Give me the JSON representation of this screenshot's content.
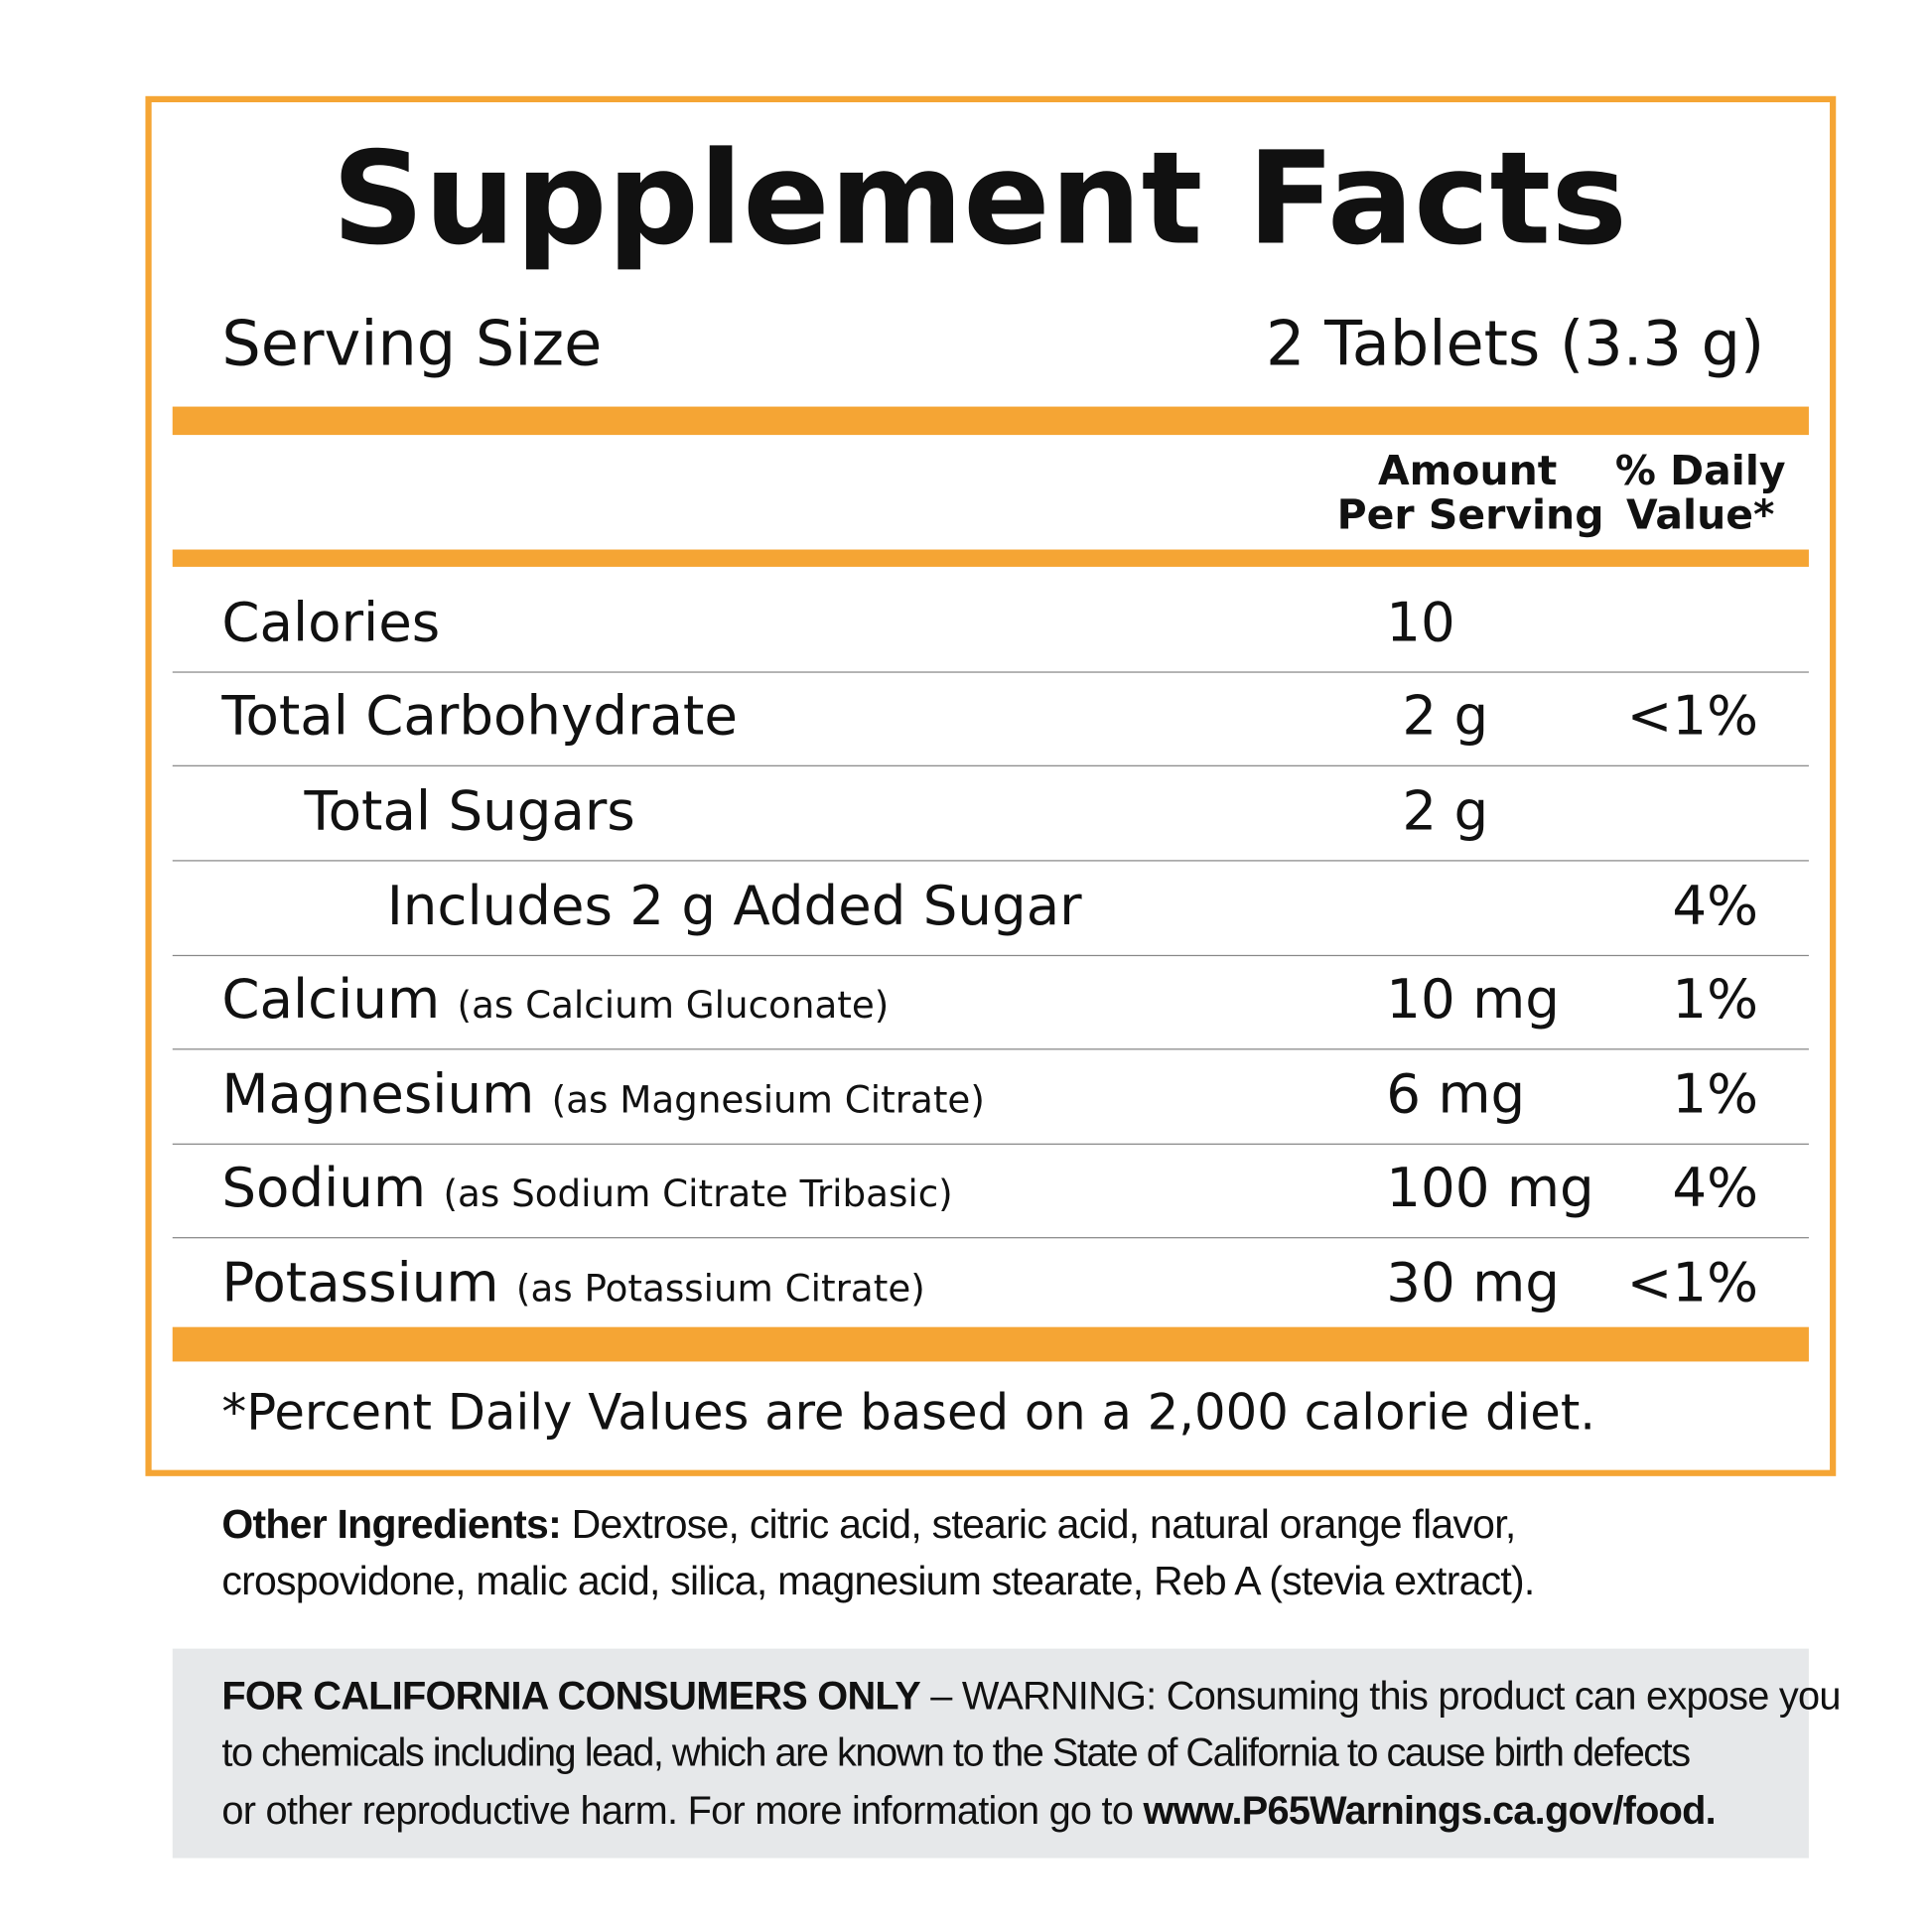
{
  "title": "Supplement Facts",
  "serving_size": {
    "label": "Serving Size",
    "value": "2 Tablets (3.3 g)"
  },
  "columns": {
    "amount": [
      "Amount",
      "Per Serving"
    ],
    "daily_value": [
      "% Daily",
      "Value*"
    ]
  },
  "rows": [
    {
      "name": "Calories",
      "source": "",
      "amount": "10",
      "dv": ""
    },
    {
      "name": "Total Carbohydrate",
      "source": "",
      "amount": "2 g",
      "dv": "<1%"
    },
    {
      "name": "Total Sugars",
      "source": "",
      "amount": "2 g",
      "dv": ""
    },
    {
      "name": "Includes 2 g Added Sugar",
      "source": "",
      "amount": "",
      "dv": "4%"
    },
    {
      "name": "Calcium",
      "source": "(as Calcium Gluconate)",
      "amount": "10 mg",
      "dv": "1%"
    },
    {
      "name": "Magnesium",
      "source": "(as Magnesium Citrate)",
      "amount": "6 mg",
      "dv": "1%"
    },
    {
      "name": "Sodium",
      "source": "(as Sodium Citrate Tribasic)",
      "amount": "100 mg",
      "dv": "4%"
    },
    {
      "name": "Potassium",
      "source": "(as Potassium Citrate)",
      "amount": "30 mg",
      "dv": "<1%"
    }
  ],
  "footnote": "*Percent Daily Values are based on a 2,000 calorie diet.",
  "other_ingredients": {
    "label": "Other Ingredients:",
    "line1": " Dextrose, citric acid, stearic acid, natural orange flavor,",
    "line2": "crospovidone, malic acid, silica, magnesium stearate, Reb A (stevia extract)."
  },
  "warning": {
    "label": "FOR CALIFORNIA CONSUMERS ONLY",
    "line1": " – WARNING: Consuming this product can expose you",
    "line2": "to chemicals including lead, which are known to the State of California to cause birth defects",
    "line3": "or other reproductive harm. For more information go to ",
    "link": "www.P65Warnings.ca.gov/food."
  },
  "colors": {
    "accent": "#F5A534",
    "warning_bg": "#E6E8EA"
  }
}
